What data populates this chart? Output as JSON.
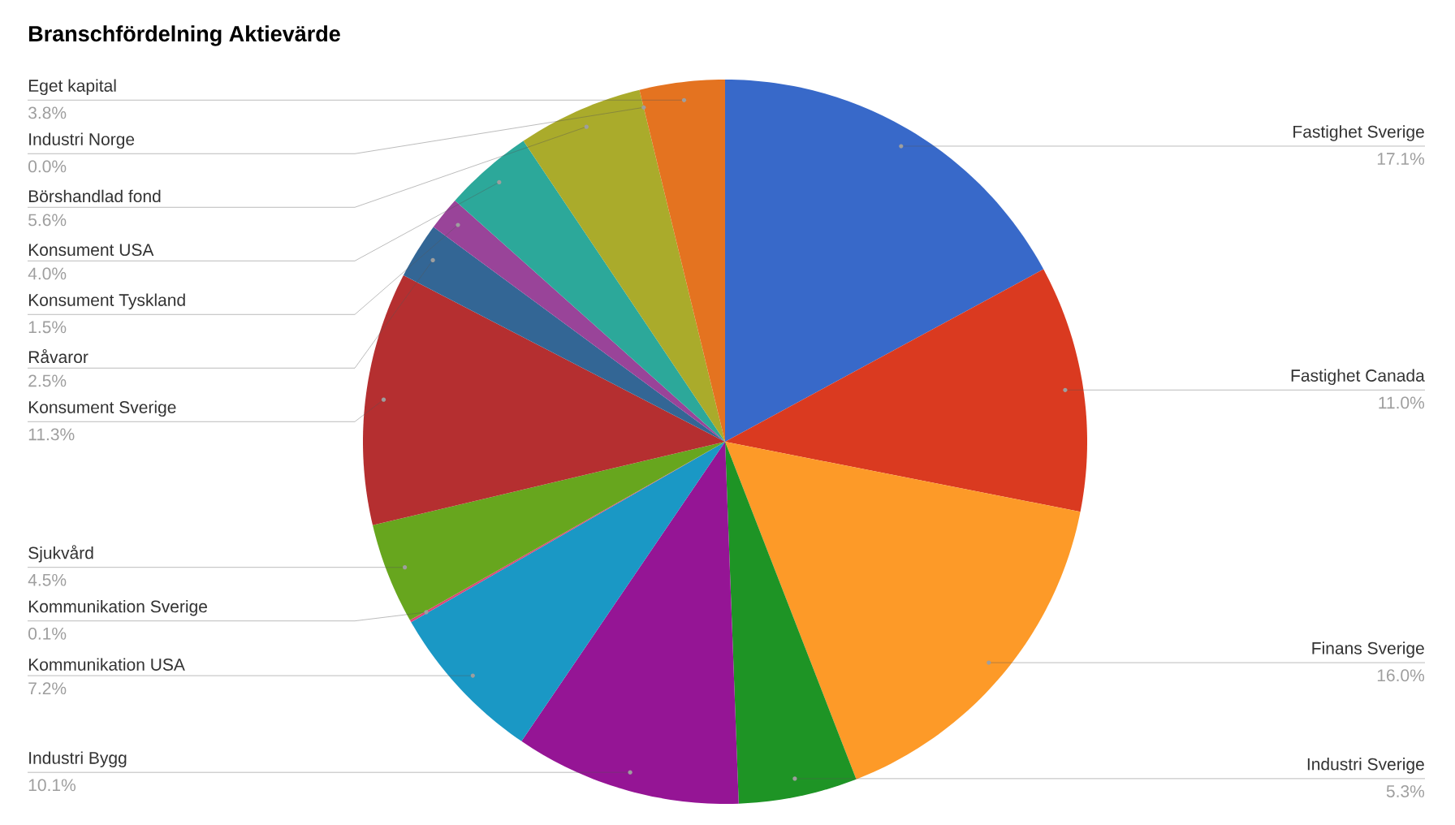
{
  "chart_data": {
    "type": "pie",
    "title": "Branschfördelning Aktievärde",
    "categories": [
      "Fastighet Sverige",
      "Fastighet Canada",
      "Finans Sverige",
      "Industri Sverige",
      "Industri Bygg",
      "Kommunikation USA",
      "Kommunikation Sverige",
      "Sjukvård",
      "Konsument Sverige",
      "Råvaror",
      "Konsument Tyskland",
      "Konsument USA",
      "Börshandlad fond",
      "Industri Norge",
      "Eget kapital"
    ],
    "values": [
      17.1,
      11.0,
      16.0,
      5.3,
      10.1,
      7.2,
      0.1,
      4.5,
      11.3,
      2.5,
      1.5,
      4.0,
      5.6,
      0.0,
      3.8
    ],
    "value_labels": [
      "17.1%",
      "11.0%",
      "16.0%",
      "5.3%",
      "10.1%",
      "7.2%",
      "0.1%",
      "4.5%",
      "11.3%",
      "2.5%",
      "1.5%",
      "4.0%",
      "5.6%",
      "0.0%",
      "3.8%"
    ],
    "colors": [
      "#3869c9",
      "#da3a20",
      "#fd9a28",
      "#1e9425",
      "#951595",
      "#1a98c5",
      "#dd4477",
      "#67a61e",
      "#b52f30",
      "#336695",
      "#994499",
      "#2ca89a",
      "#aaab2b",
      "#6633cc",
      "#e47320"
    ]
  }
}
